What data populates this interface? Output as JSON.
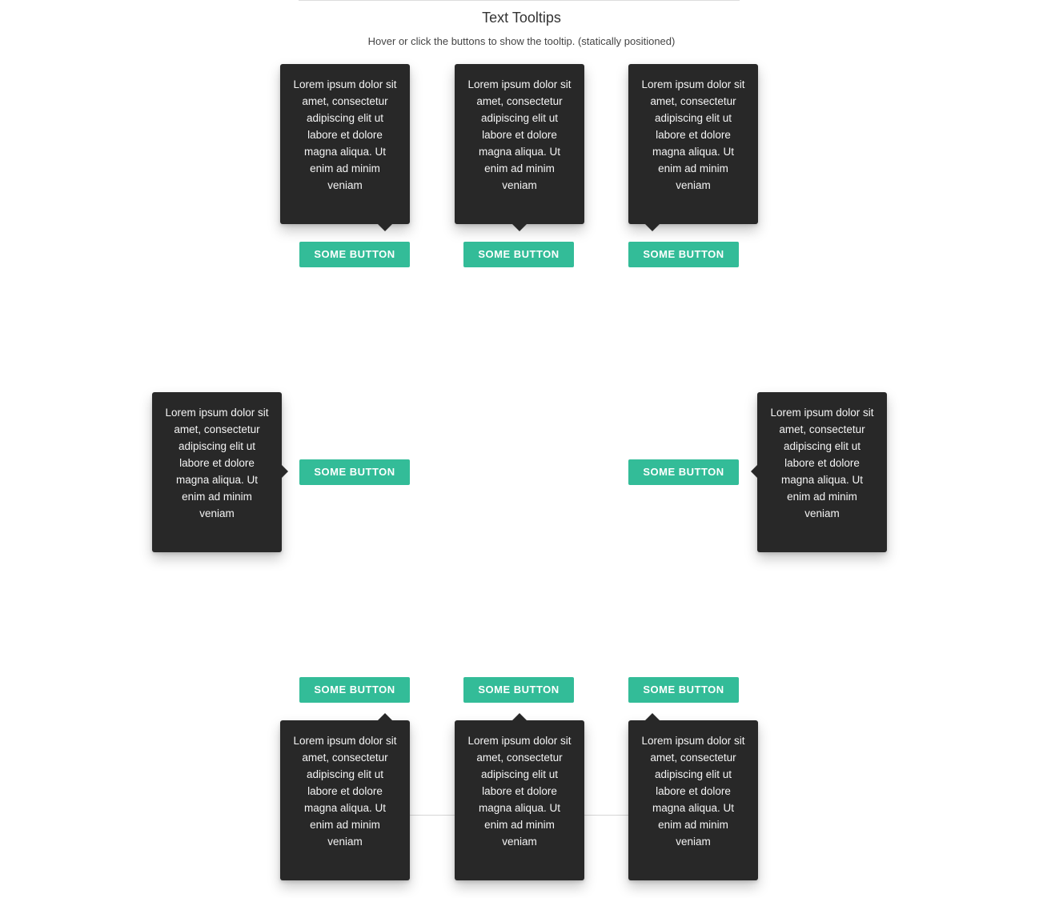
{
  "header": {
    "title": "Text Tooltips",
    "subtitle": "Hover or click the buttons to show the tooltip. (statically positioned)"
  },
  "button_label": "SOME BUTTON",
  "tooltip_text": "Lorem ipsum dolor sit amet, consectetur adipiscing elit ut labore et dolore magna aliqua. Ut enim ad minim veniam",
  "colors": {
    "button": "#33bc98",
    "tooltip": "#282828"
  },
  "tooltips": [
    {
      "placement": "top-end"
    },
    {
      "placement": "top"
    },
    {
      "placement": "top-start"
    },
    {
      "placement": "left"
    },
    {
      "placement": "right"
    },
    {
      "placement": "bottom-end"
    },
    {
      "placement": "bottom"
    },
    {
      "placement": "bottom-start"
    }
  ]
}
